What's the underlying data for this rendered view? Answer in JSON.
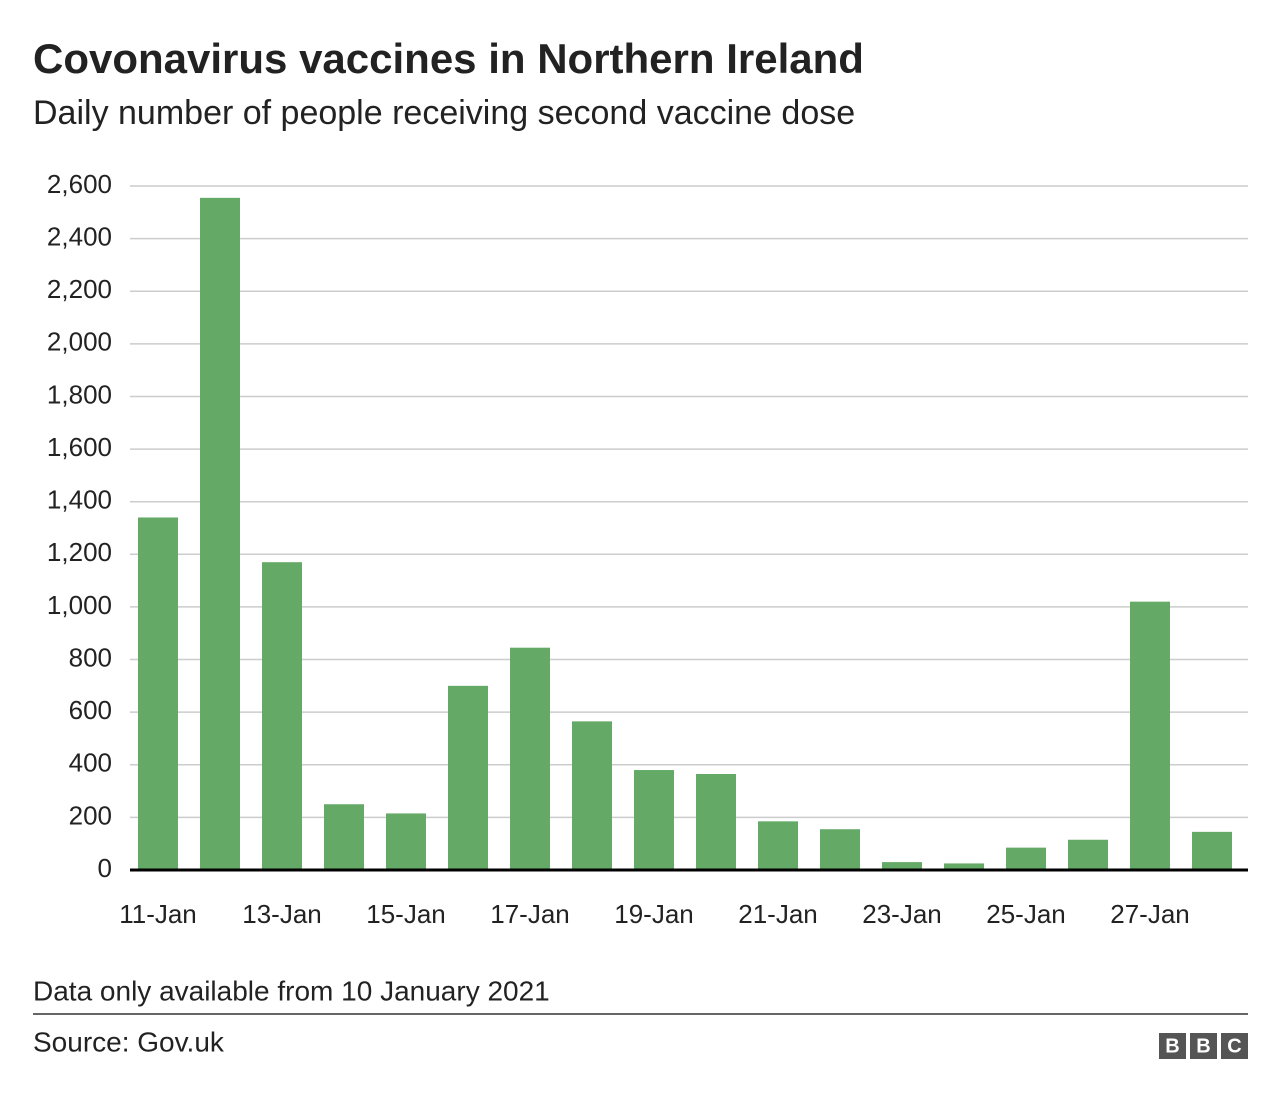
{
  "chart_data": {
    "type": "bar",
    "title": "Covonavirus vaccines in Northern Ireland",
    "subtitle": "Daily number of people receiving second vaccine dose",
    "categories": [
      "11-Jan",
      null,
      "13-Jan",
      null,
      "15-Jan",
      null,
      "17-Jan",
      null,
      "19-Jan",
      null,
      "21-Jan",
      null,
      "23-Jan",
      null,
      "25-Jan",
      null,
      "27-Jan",
      null
    ],
    "values": [
      1340,
      2555,
      1170,
      250,
      215,
      700,
      845,
      565,
      380,
      365,
      185,
      155,
      30,
      25,
      85,
      115,
      1020,
      145
    ],
    "color": "#64a965",
    "ylim": [
      0,
      2600
    ],
    "yticks": [
      0,
      200,
      400,
      600,
      800,
      {
        "value": 1000,
        "label": "1,000"
      },
      {
        "value": 1200,
        "label": "1,200"
      },
      {
        "value": 1400,
        "label": "1,400"
      },
      {
        "value": 1600,
        "label": "1,600"
      },
      {
        "value": 1800,
        "label": "1,800"
      },
      {
        "value": 2000,
        "label": "2,000"
      },
      {
        "value": 2200,
        "label": "2,200"
      },
      {
        "value": 2400,
        "label": "2,400"
      },
      {
        "value": 2600,
        "label": "2,600"
      }
    ],
    "grid": true,
    "note": "Data only available from 10 January 2021",
    "source": "Source: Gov.uk",
    "logo": [
      "B",
      "B",
      "C"
    ]
  }
}
